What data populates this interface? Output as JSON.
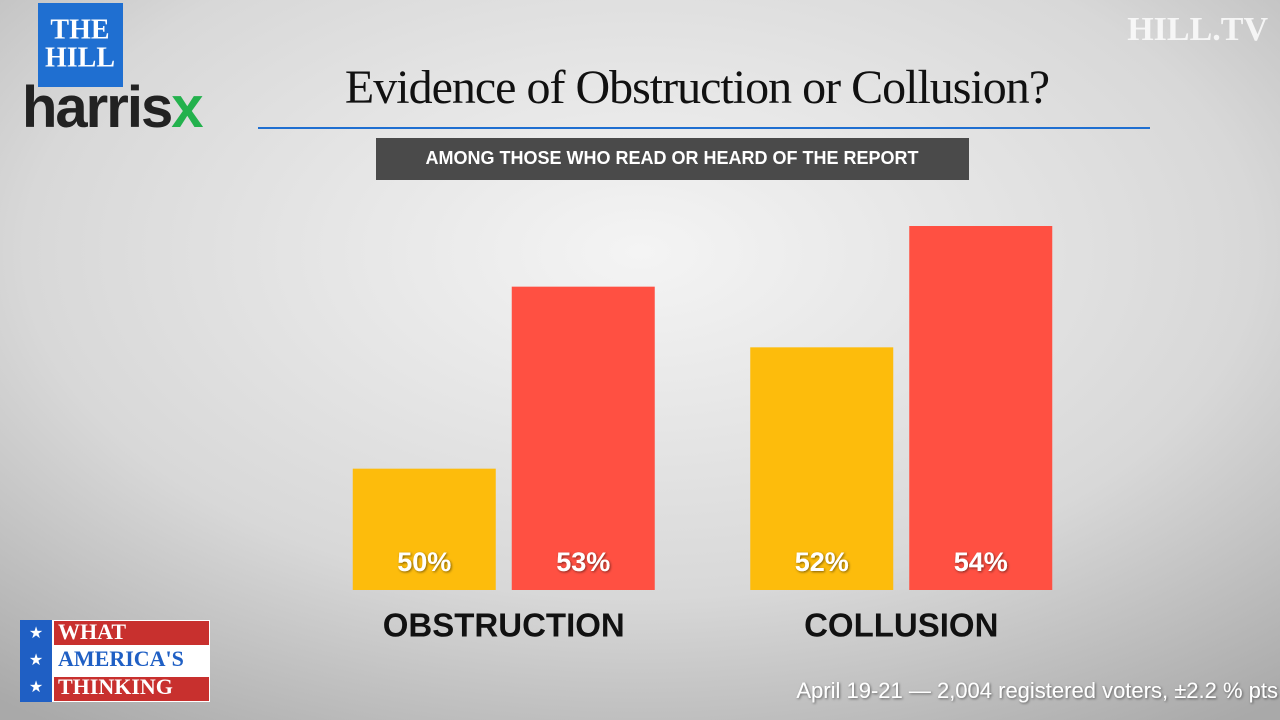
{
  "branding": {
    "hill_logo": [
      "THE",
      "HILL"
    ],
    "harrisx": [
      "harris",
      "x"
    ],
    "network": "HILL.TV",
    "show": [
      "WHAT",
      "AMERICA'S",
      "THINKING"
    ]
  },
  "chart_data": {
    "type": "bar",
    "title": "Evidence of Obstruction or Collusion?",
    "subtitle": "AMONG THOSE WHO READ OR HEARD OF THE REPORT",
    "note": "April 19-21 — 2,004 registered voters, ±2.2 % pts",
    "categories": [
      "OBSTRUCTION",
      "COLLUSION"
    ],
    "series": [
      {
        "color": "#fdbc0c",
        "values": [
          50,
          52
        ],
        "value_labels": [
          "50%",
          "52%"
        ]
      },
      {
        "color": "#ff5042",
        "values": [
          53,
          54
        ],
        "value_labels": [
          "53%",
          "54%"
        ]
      }
    ],
    "ylim": [
      48,
      54
    ]
  }
}
